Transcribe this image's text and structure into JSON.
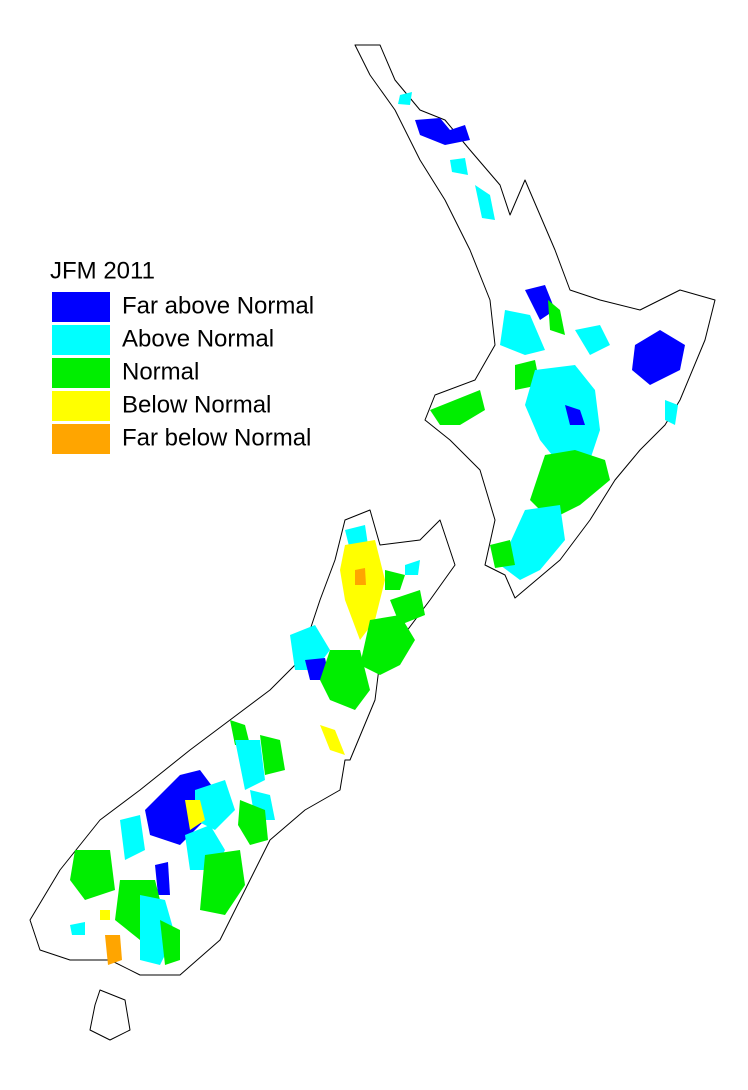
{
  "legend": {
    "title": "JFM 2011",
    "items": [
      {
        "label": "Far above Normal",
        "color": "#0000ff"
      },
      {
        "label": "Above Normal",
        "color": "#00ffff"
      },
      {
        "label": "Normal",
        "color": "#00ee00"
      },
      {
        "label": "Below Normal",
        "color": "#ffff00"
      },
      {
        "label": "Far below Normal",
        "color": "#ffa500"
      }
    ]
  }
}
